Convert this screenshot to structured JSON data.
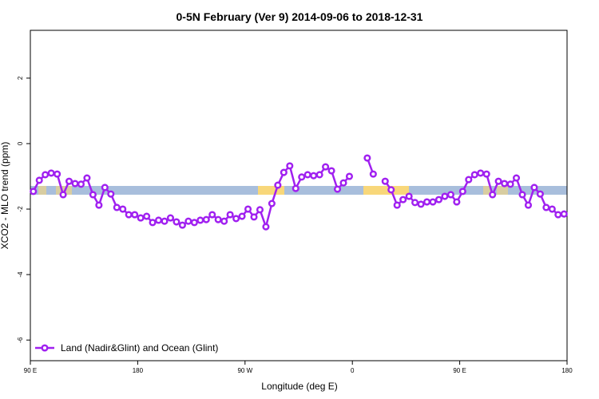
{
  "chart_data": {
    "type": "line",
    "title": "0-5N February (Ver 9)   2014-09-06 to 2018-12-31",
    "x_label": "Longitude (deg E)",
    "y_label": "XCO2 - MLO trend (ppm)",
    "xlim": [
      90,
      540
    ],
    "ylim": [
      -6.63,
      3.46
    ],
    "xticks": [
      {
        "value": 90,
        "label": "90 E"
      },
      180,
      {
        "value": 270,
        "label": "90 W"
      },
      {
        "value": 360,
        "label": "0"
      },
      {
        "value": 450,
        "label": "90 E"
      },
      {
        "value": 540,
        "label": "180"
      }
    ],
    "yticks": [
      2,
      0,
      -2,
      -4,
      -6
    ],
    "legend": "bottom-left",
    "x": [
      92.5,
      97.5,
      102.5,
      107.5,
      112.5,
      117.5,
      122.5,
      127.5,
      132.5,
      137.5,
      142.5,
      147.5,
      152.5,
      157.5,
      162.5,
      167.5,
      172.5,
      177.5,
      182.5,
      187.5,
      192.5,
      197.5,
      202.5,
      207.5,
      212.5,
      217.5,
      222.5,
      227.5,
      232.5,
      237.5,
      242.5,
      247.5,
      252.5,
      257.5,
      262.5,
      267.5,
      272.5,
      277.5,
      282.5,
      287.5,
      292.5,
      297.5,
      302.5,
      307.5,
      312.5,
      317.5,
      322.5,
      327.5,
      332.5,
      337.5,
      342.5,
      347.5,
      352.5,
      357.5,
      362.5,
      367.5,
      372.5,
      377.5,
      382.5,
      387.5,
      392.5,
      397.5,
      402.5,
      407.5,
      412.5,
      417.5,
      422.5,
      427.5,
      432.5,
      437.5,
      442.5,
      447.5,
      452.5,
      457.5,
      462.5,
      467.5,
      472.5,
      477.5,
      482.5,
      487.5,
      492.5,
      497.5,
      502.5,
      507.5,
      512.5,
      517.5,
      522.5,
      527.5,
      532.5,
      537.5
    ],
    "series": [
      {
        "name": "Land (Nadir&Glint) and Ocean (Glint)",
        "color": "#a020f0",
        "values": [
          -1.46,
          -1.12,
          -0.95,
          -0.9,
          -0.93,
          -1.56,
          -1.15,
          -1.22,
          -1.24,
          -1.05,
          -1.56,
          -1.88,
          -1.34,
          -1.54,
          -1.95,
          -2.0,
          -2.17,
          -2.17,
          -2.27,
          -2.22,
          -2.41,
          -2.34,
          -2.37,
          -2.27,
          -2.39,
          -2.49,
          -2.37,
          -2.41,
          -2.34,
          -2.32,
          -2.17,
          -2.32,
          -2.37,
          -2.17,
          -2.29,
          -2.22,
          -2.0,
          -2.24,
          -2.02,
          -2.54,
          -1.83,
          -1.27,
          -0.88,
          -0.68,
          -1.37,
          -1.02,
          -0.95,
          -0.98,
          -0.95,
          -0.71,
          -0.83,
          -1.39,
          -1.2,
          -1.0,
          null,
          null,
          -0.44,
          -0.93,
          null,
          -1.15,
          -1.41,
          -1.88,
          -1.71,
          -1.61,
          -1.8,
          -1.85,
          -1.78,
          -1.78,
          -1.71,
          -1.61,
          -1.56,
          -1.78,
          -1.46,
          -1.1,
          -0.95,
          -0.9,
          -0.93,
          -1.56,
          -1.15,
          -1.22,
          -1.24,
          -1.05,
          -1.56,
          -1.88,
          -1.34,
          -1.54,
          -1.95,
          -2.0,
          -2.17,
          -2.15
        ]
      }
    ]
  }
}
